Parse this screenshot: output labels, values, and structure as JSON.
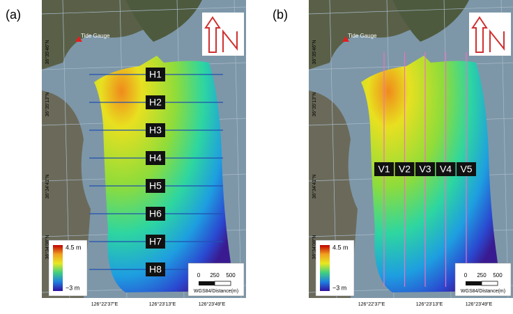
{
  "panels": [
    {
      "label": "(a)",
      "tide_gauge": "Tide Gauge",
      "lat_labels": [
        "36°35'46\"N",
        "36°35'13\"N",
        "36°34'41\"N",
        "36°34'08\"N"
      ],
      "lon_labels": [
        "126°22'37\"E",
        "126°23'13\"E",
        "126°23'49\"E"
      ],
      "transects": [
        "H1",
        "H2",
        "H3",
        "H4",
        "H5",
        "H6",
        "H7",
        "H8"
      ],
      "legend": {
        "max": "4.5 m",
        "min": "−3 m"
      },
      "scale": {
        "ticks": [
          "0",
          "250",
          "500"
        ],
        "caption": "WGS84/Distance(m)"
      }
    },
    {
      "label": "(b)",
      "tide_gauge": "Tide Gauge",
      "lat_labels": [
        "36°35'46\"N",
        "36°35'13\"N",
        "36°34'41\"N",
        "36°34'08\"N"
      ],
      "lon_labels": [
        "126°22'37\"E",
        "126°23'13\"E",
        "126°23'49\"E"
      ],
      "transects": [
        "V1",
        "V2",
        "V3",
        "V4",
        "V5"
      ],
      "legend": {
        "max": "4.5 m",
        "min": "−3 m"
      },
      "scale": {
        "ticks": [
          "0",
          "250",
          "500"
        ],
        "caption": "WGS84/Distance(m)"
      }
    }
  ]
}
